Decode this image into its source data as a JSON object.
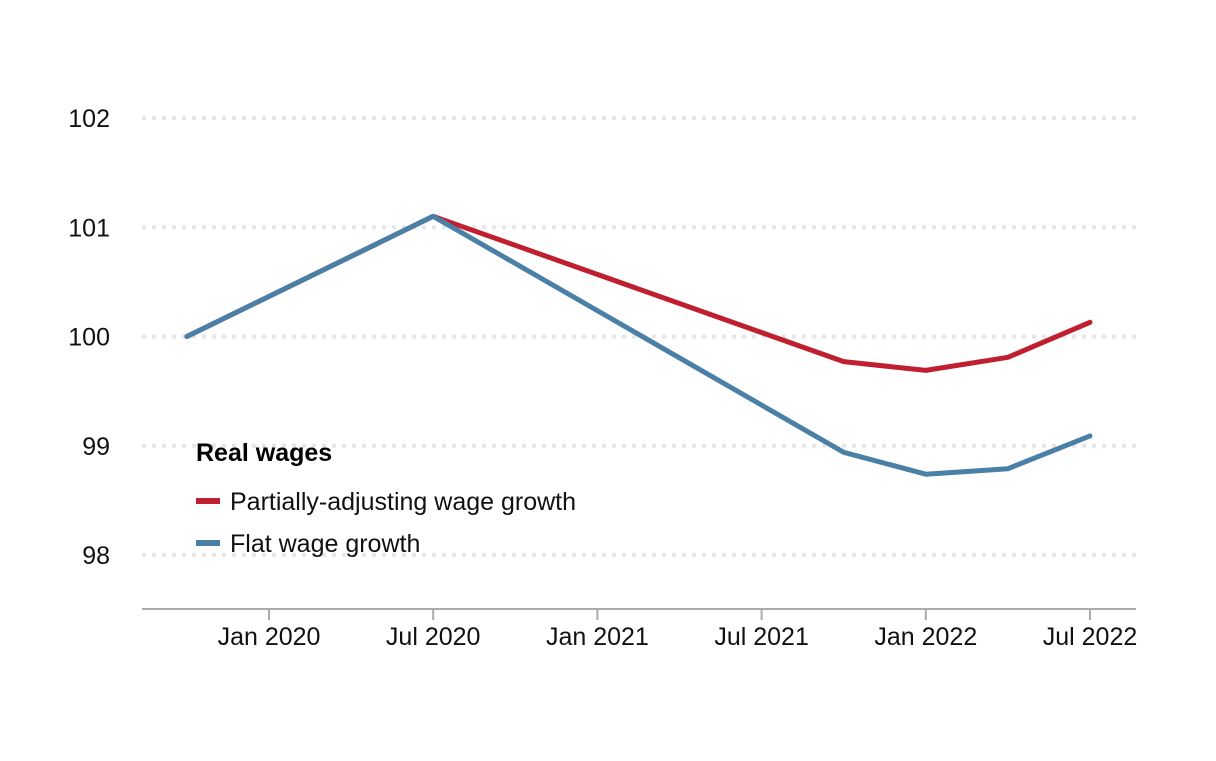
{
  "chart_data": {
    "type": "line",
    "title": "",
    "xlabel": "",
    "ylabel": "",
    "ylim": [
      97.5,
      102.5
    ],
    "grid": true,
    "yticks": [
      102,
      101,
      100,
      99,
      98
    ],
    "ytick_labels": [
      "102",
      "101",
      "100",
      "99",
      "98"
    ],
    "xticks": [
      "2020-01",
      "2020-07",
      "2021-01",
      "2021-07",
      "2022-01",
      "2022-07"
    ],
    "xtick_labels": [
      "Jan 2020",
      "Jul 2020",
      "Jan 2021",
      "Jul 2021",
      "Jan 2022",
      "Jul 2022"
    ],
    "xlim": [
      "2019-08",
      "2022-09"
    ],
    "legend": {
      "title": "Real wages",
      "placement": "bottom-left"
    },
    "series": [
      {
        "name": "Partially-adjusting wage growth",
        "color": "#c01f2f",
        "x": [
          "2019-10",
          "2020-07",
          "2021-10",
          "2022-01",
          "2022-04",
          "2022-07"
        ],
        "values": [
          100.0,
          101.1,
          99.77,
          99.69,
          99.81,
          100.13
        ]
      },
      {
        "name": "Flat wage growth",
        "color": "#4a80a6",
        "x": [
          "2019-10",
          "2020-07",
          "2021-10",
          "2022-01",
          "2022-04",
          "2022-07"
        ],
        "values": [
          100.0,
          101.1,
          98.94,
          98.74,
          98.79,
          99.09
        ]
      }
    ]
  }
}
